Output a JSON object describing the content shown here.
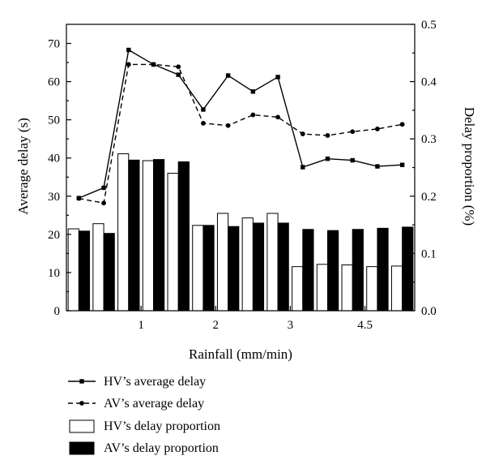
{
  "chart_data": {
    "type": "bar+line",
    "title": "",
    "xlabel": "Rainfall (mm/min)",
    "ylabel": "Average delay (s)",
    "y2label": "Delay proportion (%)",
    "ylim": [
      0,
      75
    ],
    "y2lim": [
      0,
      0.5
    ],
    "yticks": [
      "0",
      "10",
      "20",
      "30",
      "40",
      "50",
      "60",
      "70"
    ],
    "y2ticks": [
      "0.0",
      "0.1",
      "0.2",
      "0.3",
      "0.4",
      "0.5"
    ],
    "xtick_labels": [
      "1",
      "2",
      "3",
      "4.5"
    ],
    "xtick_positions": [
      3,
      6,
      9,
      12
    ],
    "x": [
      0.5,
      1.5,
      2.5,
      3.5,
      4.5,
      5.5,
      6.5,
      7.5,
      8.5,
      9.5,
      10.5,
      11.5,
      12.5,
      13.5
    ],
    "series": [
      {
        "name": "HV’s average delay",
        "axis": "left",
        "kind": "line",
        "style": "solid",
        "marker": "square",
        "values": [
          29.5,
          32.2,
          68.3,
          64.5,
          61.8,
          52.7,
          61.6,
          57.4,
          61.2,
          37.6,
          39.8,
          39.4,
          37.8,
          38.2
        ]
      },
      {
        "name": "AV’s average delay",
        "axis": "left",
        "kind": "line",
        "style": "dashed",
        "marker": "circle",
        "values": [
          29.4,
          28.2,
          64.5,
          64.5,
          63.9,
          49.1,
          48.5,
          51.3,
          50.7,
          46.3,
          45.9,
          46.9,
          47.6,
          48.8
        ]
      },
      {
        "name": "HV’s delay proportion",
        "axis": "right",
        "kind": "bar",
        "fill": "#ffffff",
        "values": [
          0.143,
          0.152,
          0.274,
          0.262,
          0.24,
          0.149,
          0.17,
          0.162,
          0.17,
          0.077,
          0.081,
          0.08,
          0.077,
          0.078
        ]
      },
      {
        "name": "AV’s delay proportion",
        "axis": "right",
        "kind": "bar",
        "fill": "#000000",
        "values": [
          0.139,
          0.135,
          0.263,
          0.264,
          0.26,
          0.149,
          0.147,
          0.153,
          0.153,
          0.142,
          0.14,
          0.142,
          0.144,
          0.146
        ]
      }
    ],
    "legend_position": "below"
  }
}
